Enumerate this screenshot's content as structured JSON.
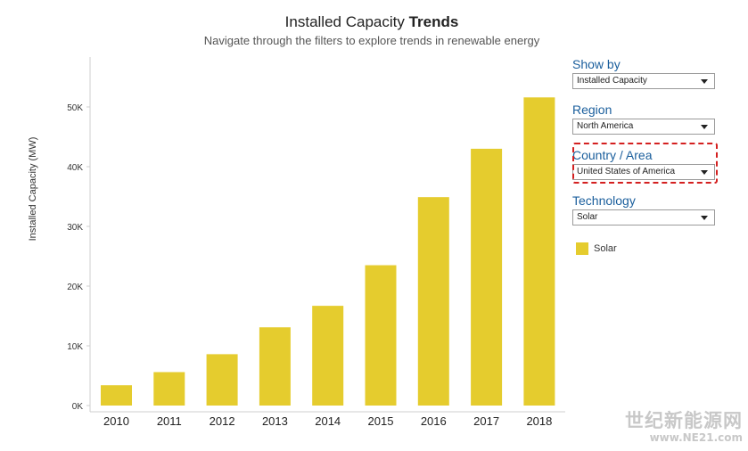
{
  "header": {
    "title_regular": "Installed Capacity ",
    "title_bold": "Trends",
    "subtitle": "Navigate through the filters to explore trends in renewable energy"
  },
  "filters": {
    "show_by": {
      "label": "Show by",
      "value": "Installed Capacity"
    },
    "region": {
      "label": "Region",
      "value": "North America"
    },
    "country": {
      "label": "Country / Area",
      "value": "United States of America"
    },
    "technology": {
      "label": "Technology",
      "value": "Solar"
    }
  },
  "legend": {
    "label": "Solar",
    "color": "#e5cc2e"
  },
  "watermark": {
    "cn": "世纪新能源网",
    "url": "www.NE21.com"
  },
  "chart_data": {
    "type": "bar",
    "ylabel": "Installed Capacity (MW)",
    "xlabel": "",
    "categories": [
      "2010",
      "2011",
      "2012",
      "2013",
      "2014",
      "2015",
      "2016",
      "2017",
      "2018"
    ],
    "series": [
      {
        "name": "Solar",
        "color": "#e5cc2e",
        "values": [
          3400,
          5600,
          8600,
          13100,
          16700,
          23500,
          34900,
          43000,
          51600
        ]
      }
    ],
    "ylim": [
      0,
      56000
    ],
    "yticks": [
      0,
      10000,
      20000,
      30000,
      40000,
      50000
    ],
    "ytick_labels": [
      "0K",
      "10K",
      "20K",
      "30K",
      "40K",
      "50K"
    ],
    "grid": false
  }
}
